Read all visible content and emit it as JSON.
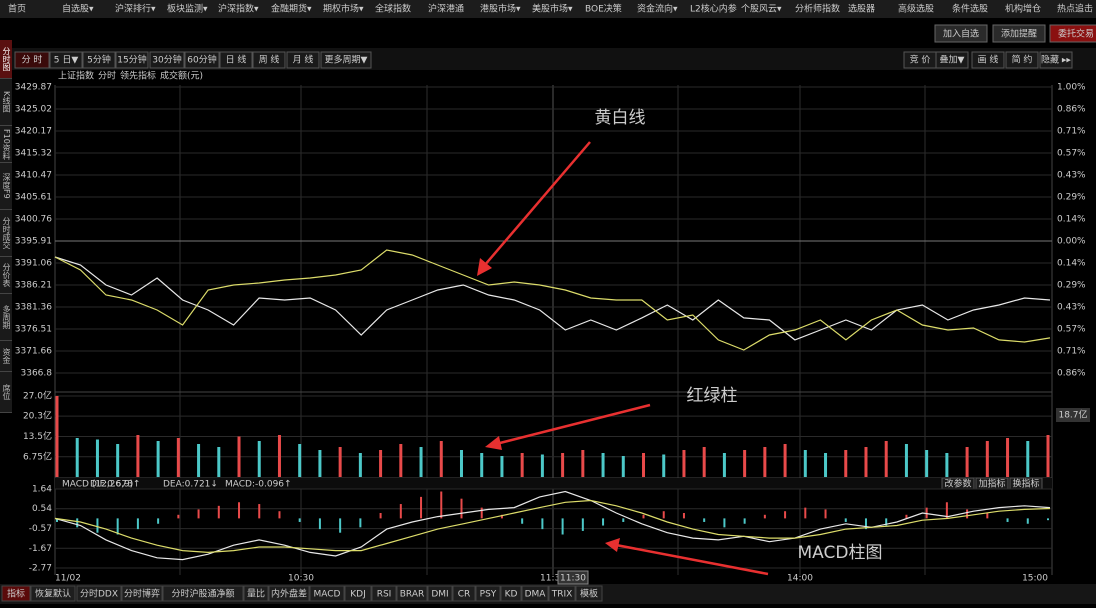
{
  "menu": [
    "首页",
    "自选股▾",
    "沪深排行▾",
    "板块监测▾",
    "沪深指数▾",
    "金融期货▾",
    "期权市场▾",
    "全球指数",
    "沪深港通",
    "港股市场▾",
    "美股市场▾",
    "BOE决策",
    "资金流向▾",
    "L2核心内参",
    "个股风云▾",
    "分析师指数",
    "选股器",
    "高级选股",
    "条件选股",
    "机构增仓",
    "热点追击"
  ],
  "top_buttons": [
    "加入自选",
    "添加提醒",
    "委托交易"
  ],
  "side_tabs": [
    "分时图",
    "K线图",
    "F10资料",
    "深度F9",
    "分时成交",
    "分价表",
    "多周期",
    "资金",
    "席位"
  ],
  "toolbar": {
    "left": [
      "分 时",
      "5 日▼",
      "5分钟",
      "15分钟",
      "30分钟",
      "60分钟",
      "日 线",
      "周 线",
      "月 线",
      "更多周期▼"
    ],
    "right": [
      "竞 价",
      "叠加▼",
      "画 线",
      "简 约",
      "隐藏 ▸▸"
    ]
  },
  "price_panel": {
    "legend": [
      "上证指数",
      "分时",
      "领先指标",
      "成交额(元)"
    ],
    "ylim": [
      3366.8,
      3429.87
    ],
    "yticks": [
      3429.87,
      3425.02,
      3420.17,
      3415.32,
      3410.47,
      3405.61,
      3400.76,
      3395.91,
      3391.06,
      3386.21,
      3381.36,
      3376.51,
      3371.66,
      3366.8
    ],
    "right_labels": [
      "1.00%",
      "0.86%",
      "0.71%",
      "0.57%",
      "0.43%",
      "0.29%",
      "0.14%",
      "0.00%",
      "0.14%",
      "0.29%",
      "0.43%",
      "0.57%",
      "0.71%",
      "0.86%"
    ],
    "series": [
      {
        "color": "#e8e8e8",
        "values": [
          3392.38,
          3390.62,
          3386.21,
          3384.01,
          3387.75,
          3382.9,
          3380.7,
          3377.39,
          3383.34,
          3382.9,
          3383.34,
          3380.7,
          3375.19,
          3380.7,
          3382.9,
          3385.11,
          3386.21,
          3384.01,
          3382.9,
          3380.7,
          3376.29,
          3378.49,
          3376.29,
          3378.94,
          3381.8,
          3378.49,
          3382.9,
          3378.94,
          3378.49,
          3374.09,
          3376.29,
          3378.49,
          3376.29,
          3380.7,
          3381.8,
          3378.49,
          3380.7,
          3381.8,
          3383.34,
          3382.9
        ]
      },
      {
        "color": "#dcdc6a",
        "values": [
          3392.38,
          3389.52,
          3384.01,
          3382.9,
          3380.7,
          3377.39,
          3385.11,
          3386.21,
          3386.65,
          3387.31,
          3387.75,
          3388.41,
          3389.52,
          3393.93,
          3392.82,
          3390.62,
          3388.41,
          3386.21,
          3386.87,
          3386.21,
          3385.11,
          3383.34,
          3382.9,
          3382.9,
          3378.49,
          3379.6,
          3374.09,
          3371.88,
          3375.19,
          3376.29,
          3378.49,
          3374.09,
          3378.49,
          3380.7,
          3377.39,
          3376.29,
          3376.73,
          3374.09,
          3373.64,
          3374.53
        ]
      }
    ]
  },
  "volume_panel": {
    "ylim": [
      0,
      27
    ],
    "yticks": [
      {
        "value": 27,
        "label": "27.0亿"
      },
      {
        "value": 20.3,
        "label": "20.3亿"
      },
      {
        "value": 13.5,
        "label": "13.5亿"
      },
      {
        "value": 6.75,
        "label": "6.75亿"
      }
    ],
    "current_label": "18.7亿",
    "values": [
      27,
      13,
      12.5,
      11,
      14,
      12,
      13,
      11,
      10,
      13.5,
      12,
      14,
      11,
      9,
      10,
      8,
      9,
      11,
      10,
      12,
      9,
      8,
      7,
      8,
      7.5,
      8,
      9,
      8,
      7,
      8,
      7.5,
      9,
      10,
      8,
      9,
      10,
      11,
      9,
      8,
      9,
      10,
      12,
      11,
      9,
      8,
      10,
      12,
      13,
      12,
      14
    ],
    "up_color": "#e84a4a",
    "down_color": "#4cc8c8"
  },
  "macd_panel": {
    "header": [
      "MACD (12,26,9)",
      "DIF:0.673↑",
      "DEA:0.721↓",
      "MACD:-0.096↑"
    ],
    "buttons": [
      "改参数",
      "加指标",
      "换指标"
    ],
    "ylim": [
      -2.77,
      1.64
    ],
    "yticks": [
      1.64,
      0.54,
      -0.57,
      -1.67,
      -2.77
    ],
    "hist": [
      -0.2,
      -0.5,
      -0.8,
      -0.9,
      -0.6,
      -0.3,
      0.2,
      0.5,
      0.7,
      0.9,
      0.8,
      0.4,
      -0.2,
      -0.6,
      -0.8,
      -0.5,
      0.3,
      0.8,
      1.2,
      1.5,
      1.1,
      0.6,
      0.2,
      -0.3,
      -0.6,
      -0.9,
      -0.7,
      -0.4,
      -0.2,
      0.2,
      0.4,
      0.3,
      -0.2,
      -0.5,
      -0.3,
      0.2,
      0.4,
      0.6,
      0.5,
      -0.2,
      -0.6,
      -0.4,
      0.2,
      0.6,
      0.9,
      0.5,
      0.3,
      -0.2,
      -0.3,
      -0.1
    ],
    "dif": {
      "color": "#e8e8e8",
      "values": [
        0,
        -0.4,
        -1.2,
        -1.8,
        -2.2,
        -2.3,
        -2.0,
        -1.5,
        -1.2,
        -1.5,
        -1.9,
        -2.1,
        -1.6,
        -0.6,
        -0.2,
        0.1,
        0.3,
        0.5,
        0.6,
        1.2,
        1.5,
        1.0,
        0.3,
        -0.3,
        -0.8,
        -1.1,
        -1.2,
        -1.0,
        -1.3,
        -1.1,
        -0.6,
        -0.3,
        -0.5,
        -0.2,
        0.3,
        0.1,
        0.4,
        0.6,
        0.7,
        0.6
      ]
    },
    "dea": {
      "color": "#dcdc6a",
      "values": [
        0,
        -0.2,
        -0.6,
        -1.1,
        -1.5,
        -1.8,
        -1.9,
        -1.8,
        -1.6,
        -1.6,
        -1.7,
        -1.8,
        -1.8,
        -1.4,
        -1.0,
        -0.6,
        -0.3,
        0.0,
        0.3,
        0.6,
        0.9,
        1.0,
        0.7,
        0.3,
        -0.2,
        -0.6,
        -0.9,
        -1.0,
        -1.1,
        -1.1,
        -0.9,
        -0.6,
        -0.5,
        -0.4,
        -0.1,
        0.0,
        0.2,
        0.4,
        0.5,
        0.55
      ]
    }
  },
  "x_labels": [
    "11/02",
    "10:30",
    "11:30",
    "14:00",
    "15:00"
  ],
  "cursor_label": "11:30",
  "bottom_tabs": [
    "指标",
    "恢复默认",
    "分时DDX",
    "分时博弈",
    "分时沪股通净额",
    "量比",
    "内外盘差",
    "MACD",
    "KDJ",
    "RSI",
    "BRAR",
    "DMI",
    "CR",
    "PSY",
    "KD",
    "DMA",
    "TRIX",
    "模板"
  ],
  "annotations": [
    "黄白线",
    "红绿柱",
    "MACD柱图"
  ]
}
